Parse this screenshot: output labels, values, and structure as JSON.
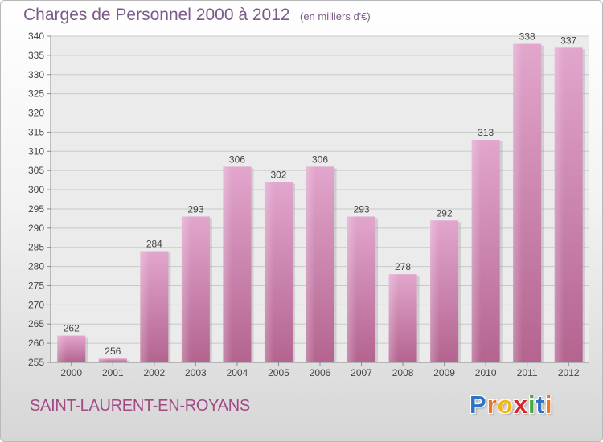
{
  "header": {
    "title": "Charges de Personnel 2000 à 2012",
    "unit": "(en milliers d'€)"
  },
  "footer": {
    "commune": "SAINT-LAURENT-EN-ROYANS",
    "logo_letters": [
      "P",
      "r",
      "o",
      "x",
      "i",
      "t",
      "i"
    ],
    "logo_colors": [
      "#2f74c4",
      "#e8772b",
      "#f2b51b",
      "#d6262a",
      "#47a83c",
      "#2f74c4",
      "#e8772b"
    ]
  },
  "chart_data": {
    "type": "bar",
    "categories": [
      "2000",
      "2001",
      "2002",
      "2003",
      "2004",
      "2005",
      "2006",
      "2007",
      "2008",
      "2009",
      "2010",
      "2011",
      "2012"
    ],
    "values": [
      262,
      256,
      284,
      293,
      306,
      302,
      306,
      293,
      278,
      292,
      313,
      338,
      337
    ],
    "data_labels": [
      "262",
      "256",
      "284",
      "293",
      "306",
      "302",
      "306",
      "293",
      "278",
      "292",
      "313",
      "338",
      "337"
    ],
    "title": "Charges de Personnel 2000 à 2012",
    "ylim": [
      255,
      340
    ],
    "yticks": [
      255,
      260,
      265,
      270,
      275,
      280,
      285,
      290,
      295,
      300,
      305,
      310,
      315,
      320,
      325,
      330,
      335,
      340
    ],
    "grid": true,
    "bar_color": "#c878a8"
  }
}
